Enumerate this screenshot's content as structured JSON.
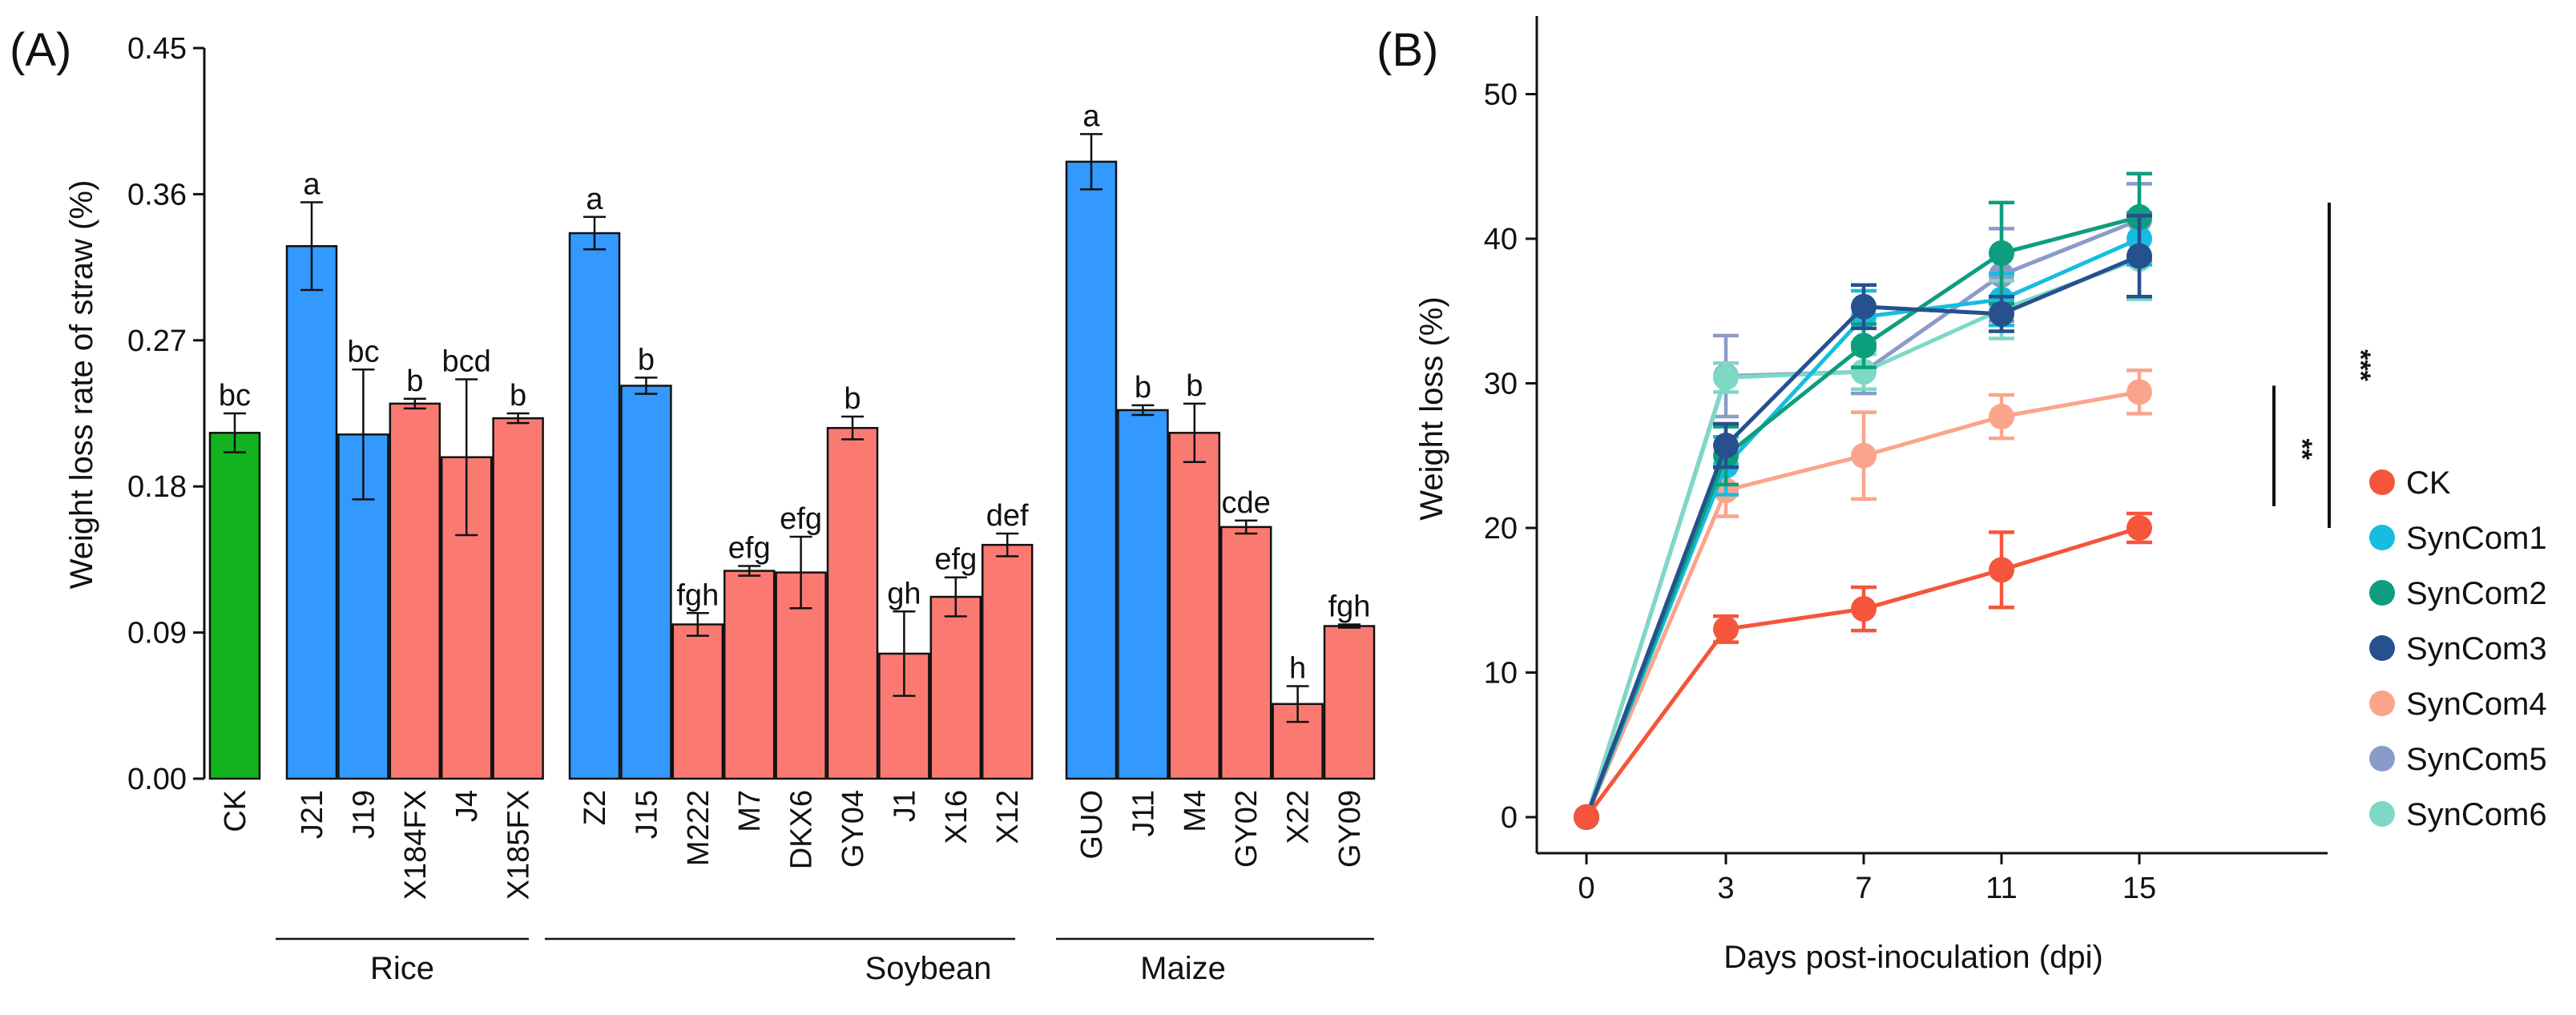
{
  "chart_data": [
    {
      "panel": "(A)",
      "type": "bar",
      "title": "",
      "ylabel": "Weight loss rate of straw (%)",
      "xlabel": "",
      "ylim": [
        0,
        0.45
      ],
      "yticks": [
        "0.00",
        "0.09",
        "0.18",
        "0.27",
        "0.36",
        "0.45"
      ],
      "colors": {
        "control": "#12b31f",
        "blue": "#3399ff",
        "red": "#fa7a72"
      },
      "groups": [
        {
          "name": "Rice",
          "bars": [
            1,
            5
          ]
        },
        {
          "name": "Soybean",
          "bars": [
            7,
            15
          ]
        },
        {
          "name": "Maize",
          "bars": [
            16,
            21
          ]
        }
      ],
      "bars": [
        {
          "label": "CK",
          "value": 0.213,
          "err": 0.012,
          "sig": "bc",
          "color": "control"
        },
        {
          "label": "J21",
          "value": 0.328,
          "err": 0.027,
          "sig": "a",
          "color": "blue"
        },
        {
          "label": "J19",
          "value": 0.212,
          "err": 0.04,
          "sig": "bc",
          "color": "blue"
        },
        {
          "label": "X184FX",
          "value": 0.231,
          "err": 0.003,
          "sig": "b",
          "color": "red"
        },
        {
          "label": "J4",
          "value": 0.198,
          "err": 0.048,
          "sig": "bcd",
          "color": "red"
        },
        {
          "label": "X185FX",
          "value": 0.222,
          "err": 0.003,
          "sig": "b",
          "color": "red"
        },
        {
          "label": "Z2",
          "value": 0.336,
          "err": 0.01,
          "sig": "a",
          "color": "blue"
        },
        {
          "label": "J15",
          "value": 0.242,
          "err": 0.005,
          "sig": "b",
          "color": "blue"
        },
        {
          "label": "M222",
          "value": 0.095,
          "err": 0.007,
          "sig": "fgh",
          "color": "red"
        },
        {
          "label": "M7",
          "value": 0.128,
          "err": 0.003,
          "sig": "efg",
          "color": "red"
        },
        {
          "label": "DKX6",
          "value": 0.127,
          "err": 0.022,
          "sig": "efg",
          "color": "red"
        },
        {
          "label": "GY04",
          "value": 0.216,
          "err": 0.007,
          "sig": "b",
          "color": "red"
        },
        {
          "label": "J1",
          "value": 0.077,
          "err": 0.026,
          "sig": "gh",
          "color": "red"
        },
        {
          "label": "X16",
          "value": 0.112,
          "err": 0.012,
          "sig": "efg",
          "color": "red"
        },
        {
          "label": "X12",
          "value": 0.144,
          "err": 0.007,
          "sig": "def",
          "color": "red"
        },
        {
          "label": "GUO",
          "value": 0.38,
          "err": 0.017,
          "sig": "a",
          "color": "blue"
        },
        {
          "label": "J11",
          "value": 0.227,
          "err": 0.003,
          "sig": "b",
          "color": "blue"
        },
        {
          "label": "M4",
          "value": 0.213,
          "err": 0.018,
          "sig": "b",
          "color": "red"
        },
        {
          "label": "GY02",
          "value": 0.155,
          "err": 0.004,
          "sig": "cde",
          "color": "red"
        },
        {
          "label": "X22",
          "value": 0.046,
          "err": 0.011,
          "sig": "h",
          "color": "red"
        },
        {
          "label": "GY09",
          "value": 0.094,
          "err": 0.001,
          "sig": "fgh",
          "color": "red"
        }
      ]
    },
    {
      "panel": "(B)",
      "type": "line",
      "title": "",
      "xlabel": "Days post-inoculation (dpi)",
      "ylabel": "Weight loss (%)",
      "x": [
        0,
        3,
        7,
        11,
        15
      ],
      "xticks": [
        "0",
        "3",
        "7",
        "11",
        "15"
      ],
      "ylim": [
        -2.5,
        53
      ],
      "yticks": [
        "0",
        "10",
        "20",
        "30",
        "40",
        "50"
      ],
      "series": [
        {
          "name": "CK",
          "color": "#f5553a",
          "values": [
            0,
            13.0,
            14.4,
            17.1,
            20.0
          ],
          "errors": [
            0,
            0.9,
            1.5,
            2.6,
            1.0
          ]
        },
        {
          "name": "SynCom1",
          "color": "#16bde0",
          "values": [
            0,
            24.3,
            34.6,
            35.8,
            40.0
          ],
          "errors": [
            0,
            2.0,
            1.8,
            1.8,
            1.8
          ]
        },
        {
          "name": "SynCom2",
          "color": "#0d9e7e",
          "values": [
            0,
            25.0,
            32.6,
            39.0,
            41.5
          ],
          "errors": [
            0,
            2.0,
            1.5,
            3.5,
            3.0
          ]
        },
        {
          "name": "SynCom3",
          "color": "#27508f",
          "values": [
            0,
            25.7,
            35.3,
            34.8,
            38.8
          ],
          "errors": [
            0,
            1.5,
            1.5,
            1.2,
            2.8
          ]
        },
        {
          "name": "SynCom4",
          "color": "#fba48c",
          "values": [
            0,
            22.6,
            25.0,
            27.7,
            29.4
          ],
          "errors": [
            0,
            1.8,
            3.0,
            1.5,
            1.5
          ]
        },
        {
          "name": "SynCom5",
          "color": "#8b9bc9",
          "values": [
            0,
            30.5,
            30.8,
            37.5,
            41.3
          ],
          "errors": [
            0,
            2.8,
            1.5,
            3.2,
            2.5
          ]
        },
        {
          "name": "SynCom6",
          "color": "#7dd9c5",
          "values": [
            0,
            30.4,
            30.8,
            35.1,
            38.6
          ],
          "errors": [
            0,
            1.0,
            1.2,
            2.0,
            2.8
          ]
        }
      ],
      "annotations": [
        {
          "text": "***",
          "from": 20.0,
          "to": 42.5
        },
        {
          "text": "**",
          "from": 21.5,
          "to": 29.4
        }
      ]
    }
  ]
}
